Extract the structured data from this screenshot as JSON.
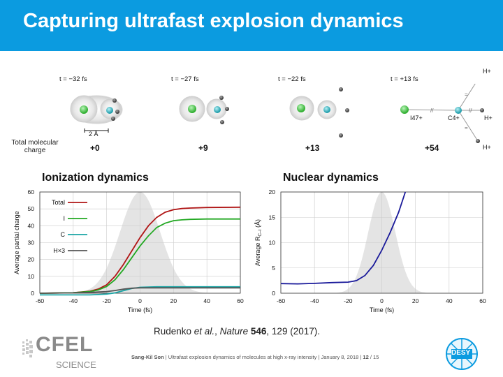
{
  "slide": {
    "title": "Capturing ultrafast explosion dynamics",
    "citation_prefix": "Rudenko ",
    "citation_etal": "et al.",
    "citation_sep": ", ",
    "citation_journal": "Nature",
    "citation_space": " ",
    "citation_volume": "546",
    "citation_rest": ", 129 (2017).",
    "footer_author": "Sang-Kil Son",
    "footer_text": "|  Ultrafast explosion dynamics of molecules at high x-ray intensity  |  January 8, 2018  |",
    "footer_page": "12",
    "footer_total": "/ 15",
    "logo_cfel": "CFEL",
    "logo_science": "SCIENCE",
    "logo_desy": "DESY"
  },
  "molecule_panel": {
    "times": [
      "t = −32 fs",
      "t = −27 fs",
      "t = −22 fs",
      "t = +13 fs"
    ],
    "charge_label_line1": "Total molecular",
    "charge_label_line2": "charge",
    "charges": [
      "+0",
      "+9",
      "+13",
      "+54"
    ],
    "scale_bar": "2 Å",
    "ion_labels": {
      "iodine": "I47+",
      "carbon": "C4+",
      "hydrogen": "H+"
    },
    "colors": {
      "iodine": "#3cc43c",
      "carbon": "#22b8c8",
      "hydrogen": "#555555"
    }
  },
  "chart_data": [
    {
      "type": "line",
      "title": "Ionization dynamics",
      "xlabel": "Time (fs)",
      "ylabel": "Average partial charge",
      "xlim": [
        -60,
        60
      ],
      "ylim": [
        0,
        60
      ],
      "xticks": [
        -60,
        -40,
        -20,
        0,
        20,
        40,
        60
      ],
      "yticks": [
        0,
        10,
        20,
        30,
        40,
        50,
        60
      ],
      "grid": true,
      "legend": "top-left",
      "pulse": {
        "center": 0,
        "sigma": 12,
        "color": "#e4e4e4"
      },
      "series": [
        {
          "name": "Total",
          "color": "#b01515",
          "x": [
            -60,
            -40,
            -30,
            -25,
            -20,
            -15,
            -10,
            -5,
            0,
            5,
            10,
            15,
            20,
            25,
            30,
            40,
            60
          ],
          "y": [
            0,
            0.3,
            1.2,
            2.5,
            5,
            10,
            17,
            25,
            33,
            40,
            45,
            48,
            49.5,
            50.2,
            50.5,
            50.8,
            51
          ]
        },
        {
          "name": "I",
          "color": "#22a822",
          "x": [
            -60,
            -40,
            -30,
            -25,
            -20,
            -15,
            -10,
            -5,
            0,
            5,
            10,
            15,
            20,
            25,
            30,
            40,
            60
          ],
          "y": [
            0,
            0.3,
            1,
            2,
            4,
            8,
            14,
            21,
            28,
            34,
            39,
            41.5,
            43,
            43.5,
            43.8,
            44,
            44
          ]
        },
        {
          "name": "C",
          "color": "#1aa5a5",
          "x": [
            -60,
            -40,
            -30,
            -25,
            -20,
            -15,
            -10,
            -5,
            0,
            10,
            20,
            40,
            60
          ],
          "y": [
            -1,
            -1,
            -1,
            -0.8,
            -0.5,
            0.2,
            1.5,
            2.8,
            3.5,
            3.8,
            3.8,
            3.8,
            3.8
          ]
        },
        {
          "name": "H×3",
          "color": "#555555",
          "x": [
            -60,
            -40,
            -30,
            -20,
            -15,
            -10,
            -5,
            0,
            10,
            20,
            40,
            60
          ],
          "y": [
            0,
            0.2,
            0.5,
            1,
            1.6,
            2.4,
            3,
            3.2,
            3.2,
            3.2,
            3.2,
            3.2
          ]
        }
      ]
    },
    {
      "type": "line",
      "title": "Nuclear dynamics",
      "xlabel": "Time (fs)",
      "ylabel": "Average R",
      "ylabel_sub": "C–I",
      "ylabel_unit": " (Å)",
      "xlim": [
        -60,
        60
      ],
      "ylim": [
        0,
        20
      ],
      "xticks": [
        -60,
        -40,
        -20,
        0,
        20,
        40,
        60
      ],
      "yticks": [
        0,
        5,
        10,
        15,
        20
      ],
      "grid": true,
      "pulse": {
        "center": 0,
        "sigma": 8,
        "color": "#e4e4e4"
      },
      "series": [
        {
          "color": "#1a1a9a",
          "x": [
            -60,
            -50,
            -40,
            -30,
            -20,
            -15,
            -10,
            -5,
            0,
            5,
            10,
            14
          ],
          "y": [
            1.9,
            1.85,
            1.95,
            2.1,
            2.2,
            2.5,
            3.5,
            5.5,
            8.5,
            12,
            16,
            20
          ]
        }
      ]
    }
  ]
}
